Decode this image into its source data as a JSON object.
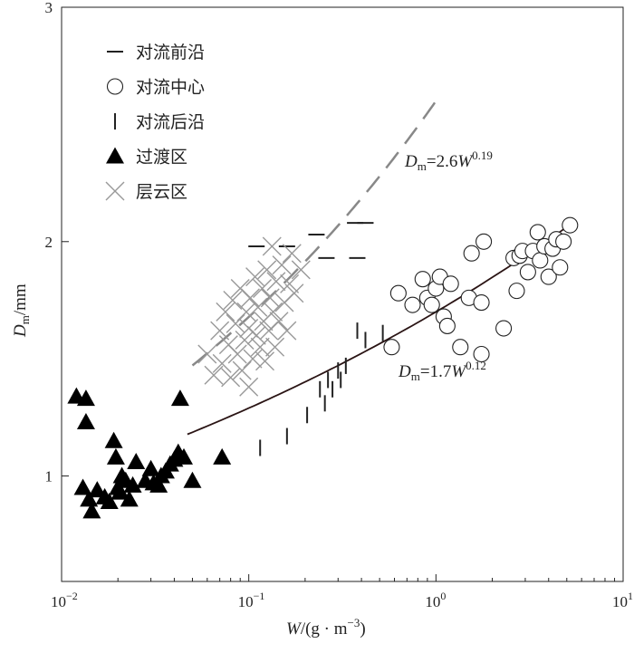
{
  "chart_data": {
    "type": "scatter",
    "xscale": "log",
    "xlim": [
      0.01,
      10
    ],
    "ylim": [
      0.55,
      3.0
    ],
    "xlabel": {
      "var": "W",
      "unit": "/(g · m",
      "exp": "−3",
      "close": ")"
    },
    "ylabel": {
      "var": "D",
      "sub": "m",
      "unit": "/mm"
    },
    "xticks": [
      {
        "value": 0.01,
        "base": "10",
        "exp": "−2"
      },
      {
        "value": 0.1,
        "base": "10",
        "exp": "−1"
      },
      {
        "value": 1,
        "base": "10",
        "exp": "0"
      },
      {
        "value": 10,
        "base": "10",
        "exp": "1"
      }
    ],
    "yticks": [
      {
        "value": 1,
        "label": "1"
      },
      {
        "value": 2,
        "label": "2"
      },
      {
        "value": 3,
        "label": "3"
      }
    ],
    "legend": [
      {
        "name": "对流前沿",
        "marker": "hbar"
      },
      {
        "name": "对流中心",
        "marker": "circle"
      },
      {
        "name": "对流后沿",
        "marker": "vbar"
      },
      {
        "name": "过渡区",
        "marker": "triangle"
      },
      {
        "name": "层云区",
        "marker": "cross"
      }
    ],
    "series": [
      {
        "name": "对流前沿",
        "marker": "hbar",
        "color": "#222222",
        "points": [
          [
            0.11,
            1.98
          ],
          [
            0.16,
            1.98
          ],
          [
            0.23,
            2.03
          ],
          [
            0.37,
            2.08
          ],
          [
            0.42,
            2.08
          ],
          [
            0.38,
            1.93
          ],
          [
            0.26,
            1.93
          ]
        ]
      },
      {
        "name": "对流中心",
        "marker": "circle",
        "color": "#222222",
        "points": [
          [
            0.58,
            1.55
          ],
          [
            0.63,
            1.78
          ],
          [
            0.75,
            1.73
          ],
          [
            0.85,
            1.84
          ],
          [
            0.9,
            1.76
          ],
          [
            0.95,
            1.73
          ],
          [
            1.0,
            1.8
          ],
          [
            1.05,
            1.85
          ],
          [
            1.1,
            1.68
          ],
          [
            1.15,
            1.64
          ],
          [
            1.2,
            1.82
          ],
          [
            1.35,
            1.55
          ],
          [
            1.5,
            1.76
          ],
          [
            1.55,
            1.95
          ],
          [
            1.75,
            1.74
          ],
          [
            1.8,
            2.0
          ],
          [
            1.75,
            1.52
          ],
          [
            2.3,
            1.63
          ],
          [
            2.6,
            1.93
          ],
          [
            2.7,
            1.79
          ],
          [
            2.8,
            1.94
          ],
          [
            2.9,
            1.96
          ],
          [
            3.1,
            1.87
          ],
          [
            3.3,
            1.96
          ],
          [
            3.5,
            2.04
          ],
          [
            3.6,
            1.92
          ],
          [
            3.8,
            1.98
          ],
          [
            4.0,
            1.85
          ],
          [
            4.2,
            1.97
          ],
          [
            4.4,
            2.01
          ],
          [
            4.6,
            1.89
          ],
          [
            4.8,
            2.0
          ],
          [
            5.2,
            2.07
          ]
        ]
      },
      {
        "name": "对流后沿",
        "marker": "vbar",
        "color": "#222222",
        "points": [
          [
            0.115,
            1.12
          ],
          [
            0.16,
            1.17
          ],
          [
            0.205,
            1.26
          ],
          [
            0.24,
            1.37
          ],
          [
            0.255,
            1.31
          ],
          [
            0.265,
            1.41
          ],
          [
            0.28,
            1.37
          ],
          [
            0.3,
            1.45
          ],
          [
            0.31,
            1.41
          ],
          [
            0.33,
            1.47
          ],
          [
            0.38,
            1.62
          ],
          [
            0.42,
            1.58
          ],
          [
            0.52,
            1.61
          ]
        ]
      },
      {
        "name": "过渡区",
        "marker": "triangle",
        "color": "#000000",
        "points": [
          [
            0.012,
            1.34
          ],
          [
            0.013,
            0.95
          ],
          [
            0.0135,
            1.33
          ],
          [
            0.0135,
            1.23
          ],
          [
            0.014,
            0.9
          ],
          [
            0.0145,
            0.85
          ],
          [
            0.0155,
            0.94
          ],
          [
            0.017,
            0.91
          ],
          [
            0.018,
            0.89
          ],
          [
            0.019,
            1.15
          ],
          [
            0.0195,
            1.08
          ],
          [
            0.02,
            0.95
          ],
          [
            0.0205,
            0.93
          ],
          [
            0.021,
            1.0
          ],
          [
            0.022,
            0.98
          ],
          [
            0.023,
            0.9
          ],
          [
            0.024,
            0.96
          ],
          [
            0.025,
            1.06
          ],
          [
            0.028,
            0.98
          ],
          [
            0.03,
            1.03
          ],
          [
            0.031,
            0.97
          ],
          [
            0.033,
            0.96
          ],
          [
            0.034,
            1.0
          ],
          [
            0.036,
            1.02
          ],
          [
            0.038,
            1.05
          ],
          [
            0.04,
            1.07
          ],
          [
            0.042,
            1.1
          ],
          [
            0.043,
            1.33
          ],
          [
            0.045,
            1.08
          ],
          [
            0.05,
            0.98
          ],
          [
            0.072,
            1.08
          ]
        ]
      },
      {
        "name": "层云区",
        "marker": "cross",
        "color": "#999999",
        "points": [
          [
            0.06,
            1.52
          ],
          [
            0.065,
            1.43
          ],
          [
            0.07,
            1.62
          ],
          [
            0.072,
            1.48
          ],
          [
            0.075,
            1.7
          ],
          [
            0.078,
            1.56
          ],
          [
            0.08,
            1.42
          ],
          [
            0.082,
            1.75
          ],
          [
            0.085,
            1.65
          ],
          [
            0.087,
            1.52
          ],
          [
            0.09,
            1.8
          ],
          [
            0.092,
            1.45
          ],
          [
            0.095,
            1.58
          ],
          [
            0.097,
            1.7
          ],
          [
            0.1,
            1.38
          ],
          [
            0.1,
            1.63
          ],
          [
            0.102,
            1.76
          ],
          [
            0.105,
            1.5
          ],
          [
            0.108,
            1.85
          ],
          [
            0.11,
            1.6
          ],
          [
            0.112,
            1.72
          ],
          [
            0.115,
            1.55
          ],
          [
            0.118,
            1.8
          ],
          [
            0.12,
            1.66
          ],
          [
            0.122,
            1.49
          ],
          [
            0.125,
            1.88
          ],
          [
            0.128,
            1.62
          ],
          [
            0.13,
            1.76
          ],
          [
            0.133,
            1.98
          ],
          [
            0.135,
            1.7
          ],
          [
            0.138,
            1.55
          ],
          [
            0.14,
            1.83
          ],
          [
            0.145,
            1.66
          ],
          [
            0.15,
            1.9
          ],
          [
            0.155,
            1.74
          ],
          [
            0.16,
            1.62
          ],
          [
            0.165,
            1.82
          ],
          [
            0.17,
            1.95
          ],
          [
            0.175,
            1.78
          ],
          [
            0.19,
            1.88
          ]
        ]
      }
    ],
    "fits": [
      {
        "name": "convective-front-fit",
        "a": 2.6,
        "b": 0.19,
        "xrange": [
          0.05,
          1.0
        ],
        "style": "dashed",
        "color": "#888888"
      },
      {
        "name": "convective-center-fit",
        "a": 1.7,
        "b": 0.12,
        "xrange": [
          0.047,
          5.2
        ],
        "style": "solid",
        "color": "#2a1414"
      }
    ],
    "annotations": [
      {
        "name": "fit-equation-front",
        "D": "D",
        "sub": "m",
        "eq": "=2.6",
        "W": "W",
        "exp": "0.19"
      },
      {
        "name": "fit-equation-center",
        "D": "D",
        "sub": "m",
        "eq": "=1.7",
        "W": "W",
        "exp": "0.12"
      }
    ]
  }
}
